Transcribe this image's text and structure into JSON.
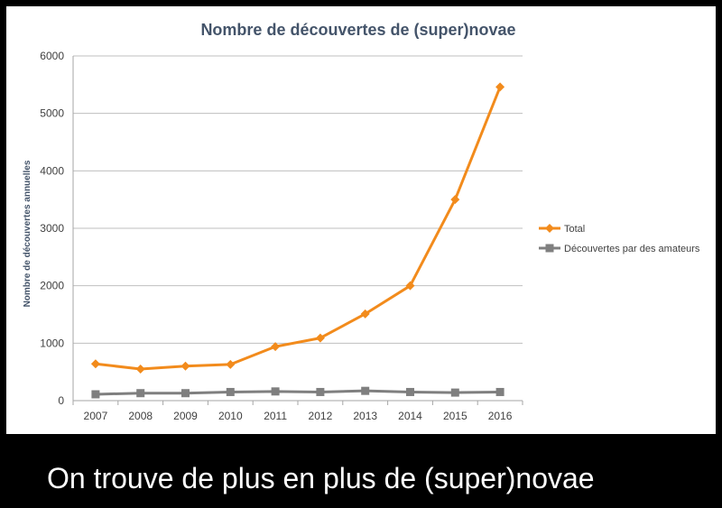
{
  "caption": "On trouve de plus en plus de (super)novae",
  "chart_data": {
    "type": "line",
    "title": "Nombre de découvertes de (super)novae",
    "xlabel": "",
    "ylabel": "Nombre de découvertes annuelles",
    "categories": [
      "2007",
      "2008",
      "2009",
      "2010",
      "2011",
      "2012",
      "2013",
      "2014",
      "2015",
      "2016"
    ],
    "ylim": [
      0,
      6000
    ],
    "yticks": [
      0,
      1000,
      2000,
      3000,
      4000,
      5000,
      6000
    ],
    "grid": true,
    "legend_position": "right",
    "series": [
      {
        "name": "Total",
        "color": "#f28b1c",
        "marker": "diamond",
        "values": [
          640,
          550,
          600,
          630,
          940,
          1090,
          1510,
          2000,
          3500,
          5460
        ]
      },
      {
        "name": "Découvertes par des amateurs",
        "color": "#7f7f7f",
        "marker": "square",
        "values": [
          110,
          130,
          130,
          150,
          160,
          150,
          170,
          150,
          140,
          150
        ]
      }
    ]
  }
}
